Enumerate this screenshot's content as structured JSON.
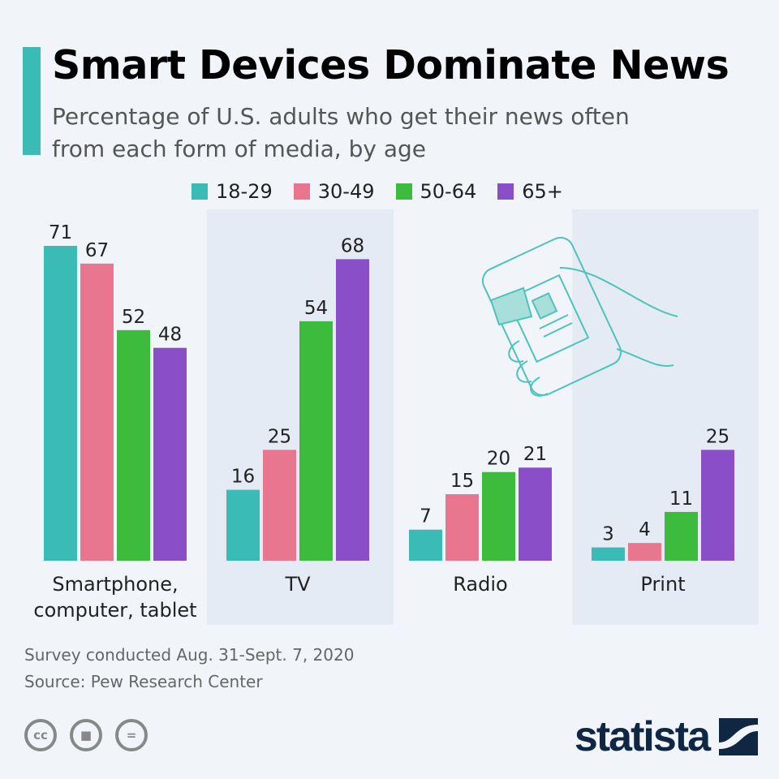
{
  "title": "Smart Devices Dominate News",
  "subtitle": "Percentage of U.S. adults who get their news often from each form of media, by age",
  "footer": {
    "survey": "Survey conducted Aug. 31-Sept. 7, 2020",
    "source": "Source: Pew Research Center",
    "brand": "statista"
  },
  "chart_data": {
    "type": "bar",
    "categories": [
      "Smartphone, computer, tablet",
      "TV",
      "Radio",
      "Print"
    ],
    "series": [
      {
        "name": "18-29",
        "color": "#3bbbb5",
        "values": [
          71,
          16,
          7,
          3
        ]
      },
      {
        "name": "30-49",
        "color": "#e8768f",
        "values": [
          67,
          25,
          15,
          4
        ]
      },
      {
        "name": "50-64",
        "color": "#3dbb3d",
        "values": [
          52,
          54,
          20,
          11
        ]
      },
      {
        "name": "65+",
        "color": "#8a4fc8",
        "values": [
          48,
          68,
          21,
          25
        ]
      }
    ],
    "legend": "top",
    "grid": false,
    "data_labels": true
  }
}
